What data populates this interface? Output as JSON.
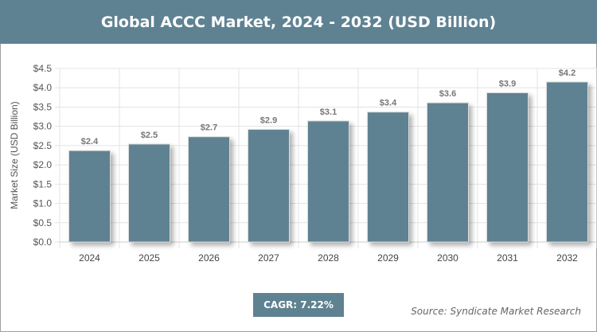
{
  "chart_data": {
    "type": "bar",
    "title": "Global ACCC Market, 2024 - 2032 (USD Billion)",
    "xlabel": "",
    "ylabel": "Market Size (USD Billion)",
    "categories": [
      "2024",
      "2025",
      "2026",
      "2027",
      "2028",
      "2029",
      "2030",
      "2031",
      "2032"
    ],
    "values": [
      2.37,
      2.54,
      2.73,
      2.92,
      3.14,
      3.37,
      3.61,
      3.87,
      4.15
    ],
    "data_labels": [
      "$2.4",
      "$2.5",
      "$2.7",
      "$2.9",
      "$3.1",
      "$3.4",
      "$3.6",
      "$3.9",
      "$4.2"
    ],
    "yticks": [
      "$0.0",
      "$0.5",
      "$1.0",
      "$1.5",
      "$2.0",
      "$2.5",
      "$3.0",
      "$3.5",
      "$4.0",
      "$4.5"
    ],
    "ylim": [
      0,
      4.5
    ],
    "grid": true,
    "bar_color": "#5f8292"
  },
  "cagr": "CAGR: 7.22%",
  "source": "Source: Syndicate Market Research"
}
